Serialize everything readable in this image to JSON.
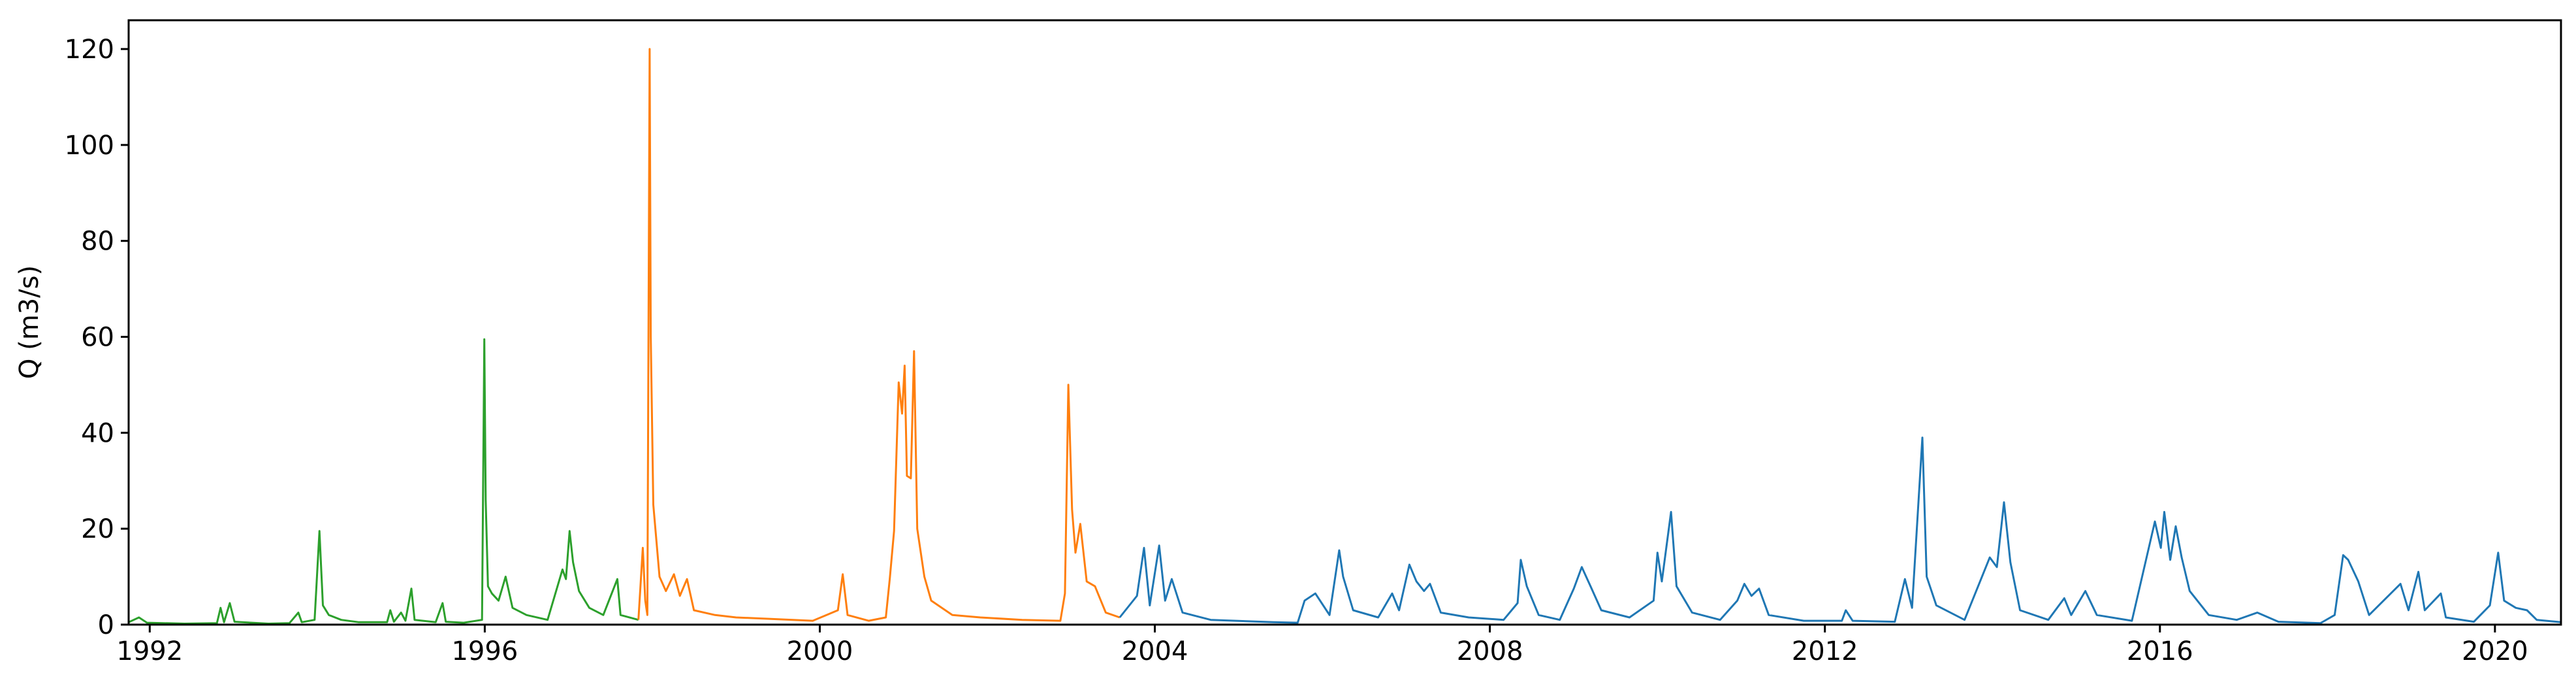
{
  "chart_data": {
    "type": "line",
    "title": "",
    "xlabel": "",
    "ylabel": "Q (m3/s)",
    "xlim": [
      "1991-10-01",
      "2020-10-15"
    ],
    "ylim": [
      0,
      126
    ],
    "x_ticks": [
      "1992",
      "1996",
      "2000",
      "2004",
      "2008",
      "2012",
      "2016",
      "2020"
    ],
    "y_ticks": [
      "0",
      "20",
      "40",
      "60",
      "80",
      "100",
      "120"
    ],
    "grid": false,
    "legend": "none",
    "series": [
      {
        "color": "#2ca02c",
        "points": [
          [
            "1991-10-01",
            0.5
          ],
          [
            "1991-11-15",
            1.5
          ],
          [
            "1991-12-20",
            0.4
          ],
          [
            "1992-06-01",
            0.2
          ],
          [
            "1992-10-20",
            0.3
          ],
          [
            "1992-11-05",
            3.5
          ],
          [
            "1992-11-20",
            0.5
          ],
          [
            "1992-12-15",
            4.5
          ],
          [
            "1993-01-05",
            0.6
          ],
          [
            "1993-06-01",
            0.2
          ],
          [
            "1993-09-01",
            0.3
          ],
          [
            "1993-10-10",
            2.5
          ],
          [
            "1993-10-25",
            0.5
          ],
          [
            "1993-12-20",
            1.0
          ],
          [
            "1994-01-10",
            19.5
          ],
          [
            "1994-01-25",
            4.0
          ],
          [
            "1994-02-20",
            2.0
          ],
          [
            "1994-04-15",
            1.0
          ],
          [
            "1994-07-01",
            0.5
          ],
          [
            "1994-11-01",
            0.5
          ],
          [
            "1994-11-15",
            3.0
          ],
          [
            "1994-12-01",
            0.6
          ],
          [
            "1995-01-01",
            2.5
          ],
          [
            "1995-01-20",
            0.8
          ],
          [
            "1995-02-15",
            7.5
          ],
          [
            "1995-03-01",
            1.0
          ],
          [
            "1995-06-01",
            0.5
          ],
          [
            "1995-07-01",
            4.5
          ],
          [
            "1995-07-15",
            0.6
          ],
          [
            "1995-10-01",
            0.4
          ],
          [
            "1995-12-20",
            1.0
          ],
          [
            "1995-12-30",
            59.5
          ],
          [
            "1996-01-05",
            26.0
          ],
          [
            "1996-01-15",
            8.0
          ],
          [
            "1996-02-01",
            6.5
          ],
          [
            "1996-03-01",
            5.0
          ],
          [
            "1996-04-01",
            10.0
          ],
          [
            "1996-05-01",
            3.5
          ],
          [
            "1996-07-01",
            2.0
          ],
          [
            "1996-10-01",
            1.0
          ],
          [
            "1996-12-05",
            11.5
          ],
          [
            "1996-12-20",
            9.5
          ],
          [
            "1997-01-05",
            19.5
          ],
          [
            "1997-01-20",
            13.0
          ],
          [
            "1997-02-15",
            7.0
          ],
          [
            "1997-04-01",
            3.5
          ],
          [
            "1997-06-01",
            2.0
          ],
          [
            "1997-08-01",
            9.5
          ],
          [
            "1997-08-15",
            2.0
          ],
          [
            "1997-11-01",
            1.0
          ]
        ]
      },
      {
        "color": "#ff7f0e",
        "points": [
          [
            "1997-11-01",
            1.0
          ],
          [
            "1997-11-20",
            16.0
          ],
          [
            "1997-12-01",
            5.0
          ],
          [
            "1997-12-10",
            2.0
          ],
          [
            "1997-12-20",
            120.0
          ],
          [
            "1997-12-25",
            60.0
          ],
          [
            "1998-01-05",
            25.0
          ],
          [
            "1998-02-01",
            10.0
          ],
          [
            "1998-03-01",
            7.0
          ],
          [
            "1998-04-05",
            10.5
          ],
          [
            "1998-05-01",
            6.0
          ],
          [
            "1998-06-01",
            9.5
          ],
          [
            "1998-07-01",
            3.0
          ],
          [
            "1998-10-01",
            2.0
          ],
          [
            "1999-01-01",
            1.5
          ],
          [
            "1999-06-01",
            1.2
          ],
          [
            "1999-12-01",
            0.8
          ],
          [
            "2000-03-20",
            3.0
          ],
          [
            "2000-04-10",
            10.5
          ],
          [
            "2000-05-01",
            2.0
          ],
          [
            "2000-08-01",
            0.8
          ],
          [
            "2000-10-15",
            1.5
          ],
          [
            "2000-11-01",
            9.5
          ],
          [
            "2000-11-20",
            19.5
          ],
          [
            "2000-12-10",
            50.5
          ],
          [
            "2000-12-25",
            44.0
          ],
          [
            "2001-01-05",
            54.0
          ],
          [
            "2001-01-15",
            31.0
          ],
          [
            "2001-02-01",
            30.5
          ],
          [
            "2001-02-15",
            57.0
          ],
          [
            "2001-03-01",
            20.0
          ],
          [
            "2001-04-01",
            10.0
          ],
          [
            "2001-05-01",
            5.0
          ],
          [
            "2001-08-01",
            2.0
          ],
          [
            "2001-12-01",
            1.5
          ],
          [
            "2002-06-01",
            1.0
          ],
          [
            "2002-11-15",
            0.8
          ],
          [
            "2002-12-05",
            6.5
          ],
          [
            "2002-12-20",
            50.0
          ],
          [
            "2003-01-05",
            24.0
          ],
          [
            "2003-01-20",
            15.0
          ],
          [
            "2003-02-10",
            21.0
          ],
          [
            "2003-03-10",
            9.0
          ],
          [
            "2003-04-15",
            8.0
          ],
          [
            "2003-06-01",
            2.5
          ],
          [
            "2003-08-01",
            1.5
          ]
        ]
      },
      {
        "color": "#1f77b4",
        "points": [
          [
            "2003-08-01",
            1.5
          ],
          [
            "2003-10-15",
            6.0
          ],
          [
            "2003-11-15",
            16.0
          ],
          [
            "2003-12-10",
            4.0
          ],
          [
            "2004-01-20",
            16.5
          ],
          [
            "2004-02-15",
            5.0
          ],
          [
            "2004-03-15",
            9.5
          ],
          [
            "2004-05-01",
            2.5
          ],
          [
            "2004-09-01",
            1.0
          ],
          [
            "2005-06-01",
            0.5
          ],
          [
            "2005-09-15",
            0.4
          ],
          [
            "2005-10-15",
            5.0
          ],
          [
            "2005-12-01",
            6.5
          ],
          [
            "2006-02-01",
            2.0
          ],
          [
            "2006-03-15",
            15.5
          ],
          [
            "2006-04-01",
            10.0
          ],
          [
            "2006-05-15",
            3.0
          ],
          [
            "2006-09-01",
            1.5
          ],
          [
            "2006-11-01",
            6.5
          ],
          [
            "2006-12-01",
            3.0
          ],
          [
            "2007-01-15",
            12.5
          ],
          [
            "2007-02-15",
            9.0
          ],
          [
            "2007-03-20",
            7.0
          ],
          [
            "2007-04-15",
            8.5
          ],
          [
            "2007-06-01",
            2.5
          ],
          [
            "2007-10-01",
            1.5
          ],
          [
            "2008-03-01",
            1.0
          ],
          [
            "2008-05-01",
            4.5
          ],
          [
            "2008-05-15",
            13.5
          ],
          [
            "2008-06-10",
            8.0
          ],
          [
            "2008-08-01",
            2.0
          ],
          [
            "2008-11-01",
            1.0
          ],
          [
            "2009-01-01",
            7.5
          ],
          [
            "2009-02-05",
            12.0
          ],
          [
            "2009-03-15",
            8.0
          ],
          [
            "2009-05-01",
            3.0
          ],
          [
            "2009-09-01",
            1.5
          ],
          [
            "2009-12-15",
            5.0
          ],
          [
            "2010-01-01",
            15.0
          ],
          [
            "2010-01-20",
            9.0
          ],
          [
            "2010-03-01",
            23.5
          ],
          [
            "2010-03-25",
            8.0
          ],
          [
            "2010-06-01",
            2.5
          ],
          [
            "2010-10-01",
            1.0
          ],
          [
            "2010-12-15",
            5.0
          ],
          [
            "2011-01-15",
            8.5
          ],
          [
            "2011-02-15",
            6.0
          ],
          [
            "2011-03-20",
            7.5
          ],
          [
            "2011-05-01",
            2.0
          ],
          [
            "2011-10-01",
            0.8
          ],
          [
            "2012-03-15",
            0.8
          ],
          [
            "2012-04-01",
            3.0
          ],
          [
            "2012-05-01",
            0.8
          ],
          [
            "2012-11-01",
            0.6
          ],
          [
            "2012-12-15",
            9.5
          ],
          [
            "2013-01-15",
            3.5
          ],
          [
            "2013-03-01",
            39.0
          ],
          [
            "2013-03-20",
            10.0
          ],
          [
            "2013-05-01",
            4.0
          ],
          [
            "2013-09-01",
            1.0
          ],
          [
            "2013-12-20",
            14.0
          ],
          [
            "2014-01-20",
            12.0
          ],
          [
            "2014-02-20",
            25.5
          ],
          [
            "2014-03-20",
            13.0
          ],
          [
            "2014-05-01",
            3.0
          ],
          [
            "2014-09-01",
            1.0
          ],
          [
            "2014-11-10",
            5.5
          ],
          [
            "2014-12-10",
            2.0
          ],
          [
            "2015-02-10",
            7.0
          ],
          [
            "2015-04-01",
            2.0
          ],
          [
            "2015-09-01",
            0.8
          ],
          [
            "2015-12-10",
            21.5
          ],
          [
            "2016-01-05",
            16.0
          ],
          [
            "2016-01-20",
            23.5
          ],
          [
            "2016-02-15",
            13.5
          ],
          [
            "2016-03-10",
            20.5
          ],
          [
            "2016-04-05",
            14.0
          ],
          [
            "2016-05-10",
            7.0
          ],
          [
            "2016-08-01",
            2.0
          ],
          [
            "2016-12-01",
            1.0
          ],
          [
            "2017-03-01",
            2.5
          ],
          [
            "2017-06-01",
            0.6
          ],
          [
            "2017-12-01",
            0.3
          ],
          [
            "2018-02-01",
            2.0
          ],
          [
            "2018-03-10",
            14.5
          ],
          [
            "2018-04-01",
            13.5
          ],
          [
            "2018-05-15",
            9.0
          ],
          [
            "2018-07-01",
            2.0
          ],
          [
            "2018-11-15",
            8.5
          ],
          [
            "2018-12-20",
            3.0
          ],
          [
            "2019-02-01",
            11.0
          ],
          [
            "2019-03-01",
            3.0
          ],
          [
            "2019-05-10",
            6.5
          ],
          [
            "2019-06-01",
            1.5
          ],
          [
            "2019-10-01",
            0.6
          ],
          [
            "2019-12-10",
            4.0
          ],
          [
            "2020-01-15",
            15.0
          ],
          [
            "2020-02-10",
            5.0
          ],
          [
            "2020-04-01",
            3.5
          ],
          [
            "2020-05-20",
            3.0
          ],
          [
            "2020-07-01",
            1.0
          ],
          [
            "2020-10-15",
            0.5
          ]
        ]
      }
    ]
  }
}
